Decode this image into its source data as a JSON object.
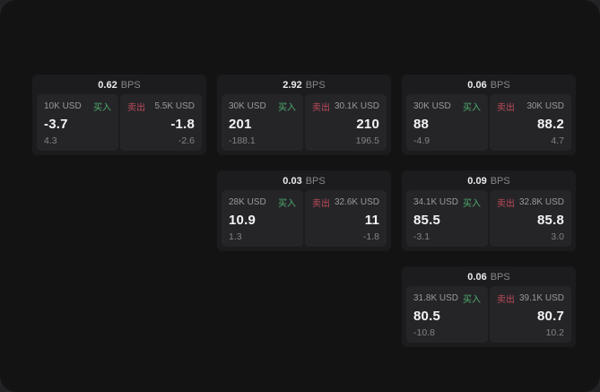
{
  "labels": {
    "bps_suffix": "BPS",
    "buy": "买入",
    "sell": "卖出"
  },
  "colors": {
    "buy_green": "#4fae6d",
    "sell_red": "#bf4a5c",
    "surface": "#131314",
    "card": "#1c1c1e",
    "panel": "#252528"
  },
  "cards": [
    {
      "bps": "0.62",
      "buy": {
        "amount": "10K USD",
        "value": "-3.7",
        "sub": "4.3"
      },
      "sell": {
        "amount": "5.5K USD",
        "value": "-1.8",
        "sub": "-2.6"
      }
    },
    {
      "bps": "2.92",
      "buy": {
        "amount": "30K USD",
        "value": "201",
        "sub": "-188.1"
      },
      "sell": {
        "amount": "30.1K USD",
        "value": "210",
        "sub": "196.5"
      }
    },
    {
      "bps": "0.06",
      "buy": {
        "amount": "30K USD",
        "value": "88",
        "sub": "-4.9"
      },
      "sell": {
        "amount": "30K USD",
        "value": "88.2",
        "sub": "4.7"
      }
    },
    {
      "bps": "0.03",
      "buy": {
        "amount": "28K USD",
        "value": "10.9",
        "sub": "1.3"
      },
      "sell": {
        "amount": "32.6K USD",
        "value": "11",
        "sub": "-1.8"
      }
    },
    {
      "bps": "0.09",
      "buy": {
        "amount": "34.1K USD",
        "value": "85.5",
        "sub": "-3.1"
      },
      "sell": {
        "amount": "32.8K USD",
        "value": "85.8",
        "sub": "3.0"
      }
    },
    {
      "bps": "0.06",
      "buy": {
        "amount": "31.8K USD",
        "value": "80.5",
        "sub": "-10.8"
      },
      "sell": {
        "amount": "39.1K USD",
        "value": "80.7",
        "sub": "10.2"
      }
    }
  ]
}
